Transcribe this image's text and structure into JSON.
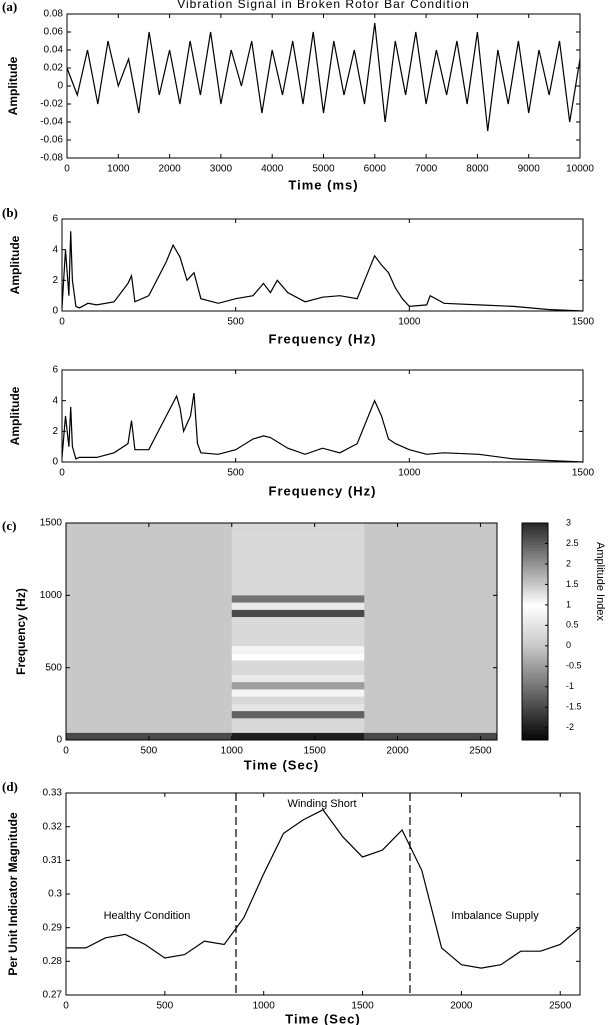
{
  "chart_data": [
    {
      "type": "line",
      "panel_label": "(a)",
      "title": "Vibration Signal in Broken Rotor Bar Condition",
      "y_label": "Amplitude",
      "x_label": "Time (ms)",
      "color": "#000000",
      "xlim": [
        0,
        10000
      ],
      "xticks": [
        0,
        1000,
        2000,
        3000,
        4000,
        5000,
        6000,
        7000,
        8000,
        9000,
        10000
      ],
      "ylim": [
        -0.08,
        0.08
      ],
      "yticks": [
        -0.08,
        -0.06,
        -0.04,
        -0.02,
        0,
        0.02,
        0.04,
        0.06,
        0.08
      ],
      "x": [
        0,
        200,
        400,
        600,
        800,
        1000,
        1200,
        1400,
        1600,
        1800,
        2000,
        2200,
        2400,
        2600,
        2800,
        3000,
        3200,
        3400,
        3600,
        3800,
        4000,
        4200,
        4400,
        4600,
        4800,
        5000,
        5200,
        5400,
        5600,
        5800,
        6000,
        6200,
        6400,
        6600,
        6800,
        7000,
        7200,
        7400,
        7600,
        7800,
        8000,
        8200,
        8400,
        8600,
        8800,
        9000,
        9200,
        9400,
        9600,
        9800,
        10000
      ],
      "values": [
        0.02,
        -0.01,
        0.04,
        -0.02,
        0.05,
        0.0,
        0.03,
        -0.03,
        0.06,
        -0.01,
        0.04,
        -0.02,
        0.05,
        -0.01,
        0.06,
        -0.02,
        0.04,
        0.0,
        0.05,
        -0.03,
        0.04,
        -0.01,
        0.05,
        -0.02,
        0.06,
        -0.03,
        0.05,
        -0.01,
        0.04,
        -0.02,
        0.07,
        -0.04,
        0.05,
        -0.01,
        0.06,
        -0.02,
        0.04,
        -0.01,
        0.05,
        -0.02,
        0.06,
        -0.05,
        0.04,
        -0.02,
        0.05,
        -0.03,
        0.04,
        -0.01,
        0.05,
        -0.04,
        0.03
      ]
    },
    {
      "type": "line",
      "panel_label": "(b)",
      "y_label": "Amplitude",
      "x_label": "Frequency (Hz)",
      "color": "#000000",
      "xlim": [
        0,
        1500
      ],
      "xticks": [
        0,
        500,
        1000,
        1500
      ],
      "ylim": [
        0,
        6
      ],
      "yticks": [
        0,
        2,
        4,
        6
      ],
      "x": [
        0,
        10,
        20,
        25,
        30,
        40,
        50,
        75,
        100,
        150,
        190,
        200,
        210,
        250,
        300,
        320,
        340,
        360,
        380,
        400,
        450,
        500,
        550,
        580,
        600,
        620,
        650,
        700,
        750,
        800,
        850,
        900,
        920,
        940,
        960,
        980,
        1000,
        1050,
        1060,
        1100,
        1200,
        1300,
        1400,
        1500
      ],
      "values": [
        0.2,
        4.0,
        1.0,
        5.2,
        2.0,
        0.3,
        0.2,
        0.5,
        0.4,
        0.6,
        1.8,
        2.3,
        0.6,
        1.0,
        3.2,
        4.3,
        3.5,
        2.0,
        2.5,
        0.8,
        0.5,
        0.8,
        1.0,
        1.8,
        1.2,
        2.0,
        1.2,
        0.6,
        0.9,
        1.0,
        0.8,
        3.6,
        3.0,
        2.5,
        1.5,
        0.8,
        0.3,
        0.4,
        1.0,
        0.5,
        0.4,
        0.3,
        0.1,
        0.0
      ]
    },
    {
      "type": "line",
      "y_label": "Amplitude",
      "x_label": "Frequency (Hz)",
      "color": "#000000",
      "xlim": [
        0,
        1500
      ],
      "xticks": [
        0,
        500,
        1000,
        1500
      ],
      "ylim": [
        0,
        6
      ],
      "yticks": [
        0,
        2,
        4,
        6
      ],
      "x": [
        0,
        10,
        20,
        25,
        30,
        40,
        50,
        100,
        150,
        190,
        200,
        210,
        250,
        300,
        330,
        340,
        350,
        370,
        380,
        390,
        400,
        450,
        500,
        550,
        580,
        600,
        650,
        700,
        750,
        800,
        850,
        900,
        920,
        940,
        960,
        1000,
        1050,
        1100,
        1200,
        1300,
        1400,
        1500
      ],
      "values": [
        0.3,
        3.0,
        1.0,
        3.6,
        1.0,
        0.2,
        0.3,
        0.3,
        0.6,
        1.2,
        2.7,
        0.8,
        0.8,
        3.0,
        4.3,
        3.5,
        2.0,
        3.0,
        4.5,
        1.2,
        0.6,
        0.5,
        0.8,
        1.5,
        1.7,
        1.6,
        0.9,
        0.5,
        0.9,
        0.6,
        1.2,
        4.0,
        3.0,
        1.5,
        1.2,
        0.8,
        0.5,
        0.6,
        0.5,
        0.2,
        0.1,
        0.0
      ]
    },
    {
      "type": "heatmap",
      "panel_label": "(c)",
      "y_label": "Frequency (Hz)",
      "x_label": "Time (Sec)",
      "colorbar_label": "Amplitude Index",
      "xlim": [
        0,
        2600
      ],
      "xticks": [
        0,
        500,
        1000,
        1500,
        2000,
        2500
      ],
      "ylim": [
        0,
        1500
      ],
      "yticks": [
        0,
        500,
        1000,
        1500
      ],
      "clim": [
        -2.3,
        3
      ],
      "cticks": [
        -2,
        -1.5,
        -1,
        -0.5,
        0,
        0.5,
        1,
        1.5,
        2,
        2.5,
        3
      ],
      "xbins": [
        0,
        1000,
        1800,
        2600
      ],
      "ybins": [
        0,
        50,
        100,
        150,
        200,
        250,
        300,
        350,
        400,
        450,
        500,
        550,
        600,
        650,
        700,
        750,
        800,
        850,
        900,
        950,
        1000,
        1050,
        1100,
        1150,
        1200,
        1250,
        1300,
        1350,
        1400,
        1450,
        1500
      ],
      "values": [
        [
          -1.5,
          -2,
          -1.5
        ],
        [
          0,
          0.3,
          0
        ],
        [
          0,
          0.3,
          0
        ],
        [
          0,
          -1.2,
          0
        ],
        [
          0,
          0.5,
          0
        ],
        [
          0,
          0.3,
          0
        ],
        [
          0,
          0.8,
          0
        ],
        [
          0,
          -0.5,
          0
        ],
        [
          0,
          0.6,
          0
        ],
        [
          0,
          0.3,
          0
        ],
        [
          0,
          0.3,
          0
        ],
        [
          0,
          1.0,
          0
        ],
        [
          0,
          0.8,
          0
        ],
        [
          0,
          0.3,
          0
        ],
        [
          0,
          0.3,
          0
        ],
        [
          0,
          0.3,
          0
        ],
        [
          0,
          0.3,
          0
        ],
        [
          0,
          -1.5,
          0
        ],
        [
          0,
          1.2,
          0
        ],
        [
          0,
          -1,
          0
        ],
        [
          0,
          0.3,
          0
        ],
        [
          0,
          0.3,
          0
        ],
        [
          0,
          0.3,
          0
        ],
        [
          0,
          0.3,
          0
        ],
        [
          0,
          0.3,
          0
        ],
        [
          0,
          0.3,
          0
        ],
        [
          0,
          0.3,
          0
        ],
        [
          0,
          0.3,
          0
        ],
        [
          0,
          0.3,
          0
        ],
        [
          0,
          0.3,
          0
        ]
      ]
    },
    {
      "type": "line",
      "panel_label": "(d)",
      "y_label": "Per Unit Indicator Magnitude",
      "x_label": "Time (Sec)",
      "color": "#000000",
      "xlim": [
        0,
        2600
      ],
      "xticks": [
        0,
        500,
        1000,
        1500,
        2000,
        2500
      ],
      "ylim": [
        0.27,
        0.33
      ],
      "yticks": [
        0.27,
        0.28,
        0.29,
        0.3,
        0.31,
        0.32,
        0.33
      ],
      "vlines": [
        860,
        1740
      ],
      "annotations": [
        "Healthy Condition",
        "Winding Short",
        "Imbalance Supply"
      ],
      "x": [
        0,
        100,
        200,
        300,
        400,
        500,
        600,
        700,
        800,
        900,
        1000,
        1100,
        1200,
        1300,
        1400,
        1500,
        1600,
        1700,
        1800,
        1900,
        2000,
        2100,
        2200,
        2300,
        2400,
        2500,
        2600
      ],
      "values": [
        0.284,
        0.284,
        0.287,
        0.288,
        0.285,
        0.281,
        0.282,
        0.286,
        0.285,
        0.293,
        0.306,
        0.318,
        0.322,
        0.325,
        0.317,
        0.311,
        0.313,
        0.319,
        0.307,
        0.284,
        0.279,
        0.278,
        0.279,
        0.283,
        0.283,
        0.285,
        0.29
      ]
    }
  ]
}
